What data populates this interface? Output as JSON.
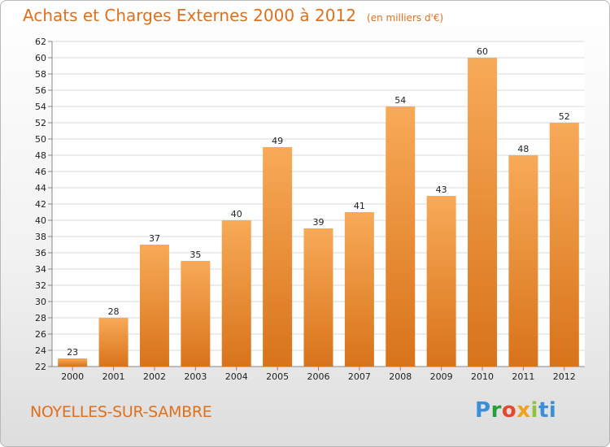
{
  "header": {
    "title": "Achats et Charges Externes 2000 à 2012",
    "subtitle": "(en milliers d'€)"
  },
  "footer": {
    "town": "NOYELLES-SUR-SAMBRE",
    "logo": "Proxiti"
  },
  "colors": {
    "bar_top": "#f8aa58",
    "bar_bottom": "#d8731a",
    "grid": "#d8d8d8",
    "accent": "#e0701c"
  },
  "chart_data": {
    "type": "bar",
    "title": "Achats et Charges Externes 2000 à 2012",
    "subtitle": "(en milliers d'€)",
    "categories": [
      "2000",
      "2001",
      "2002",
      "2003",
      "2004",
      "2005",
      "2006",
      "2007",
      "2008",
      "2009",
      "2010",
      "2011",
      "2012"
    ],
    "values": [
      23,
      28,
      37,
      35,
      40,
      49,
      39,
      41,
      54,
      43,
      60,
      48,
      52
    ],
    "ylim": [
      22,
      62
    ],
    "ytick_step": 2,
    "grid": true,
    "legend": "none"
  }
}
